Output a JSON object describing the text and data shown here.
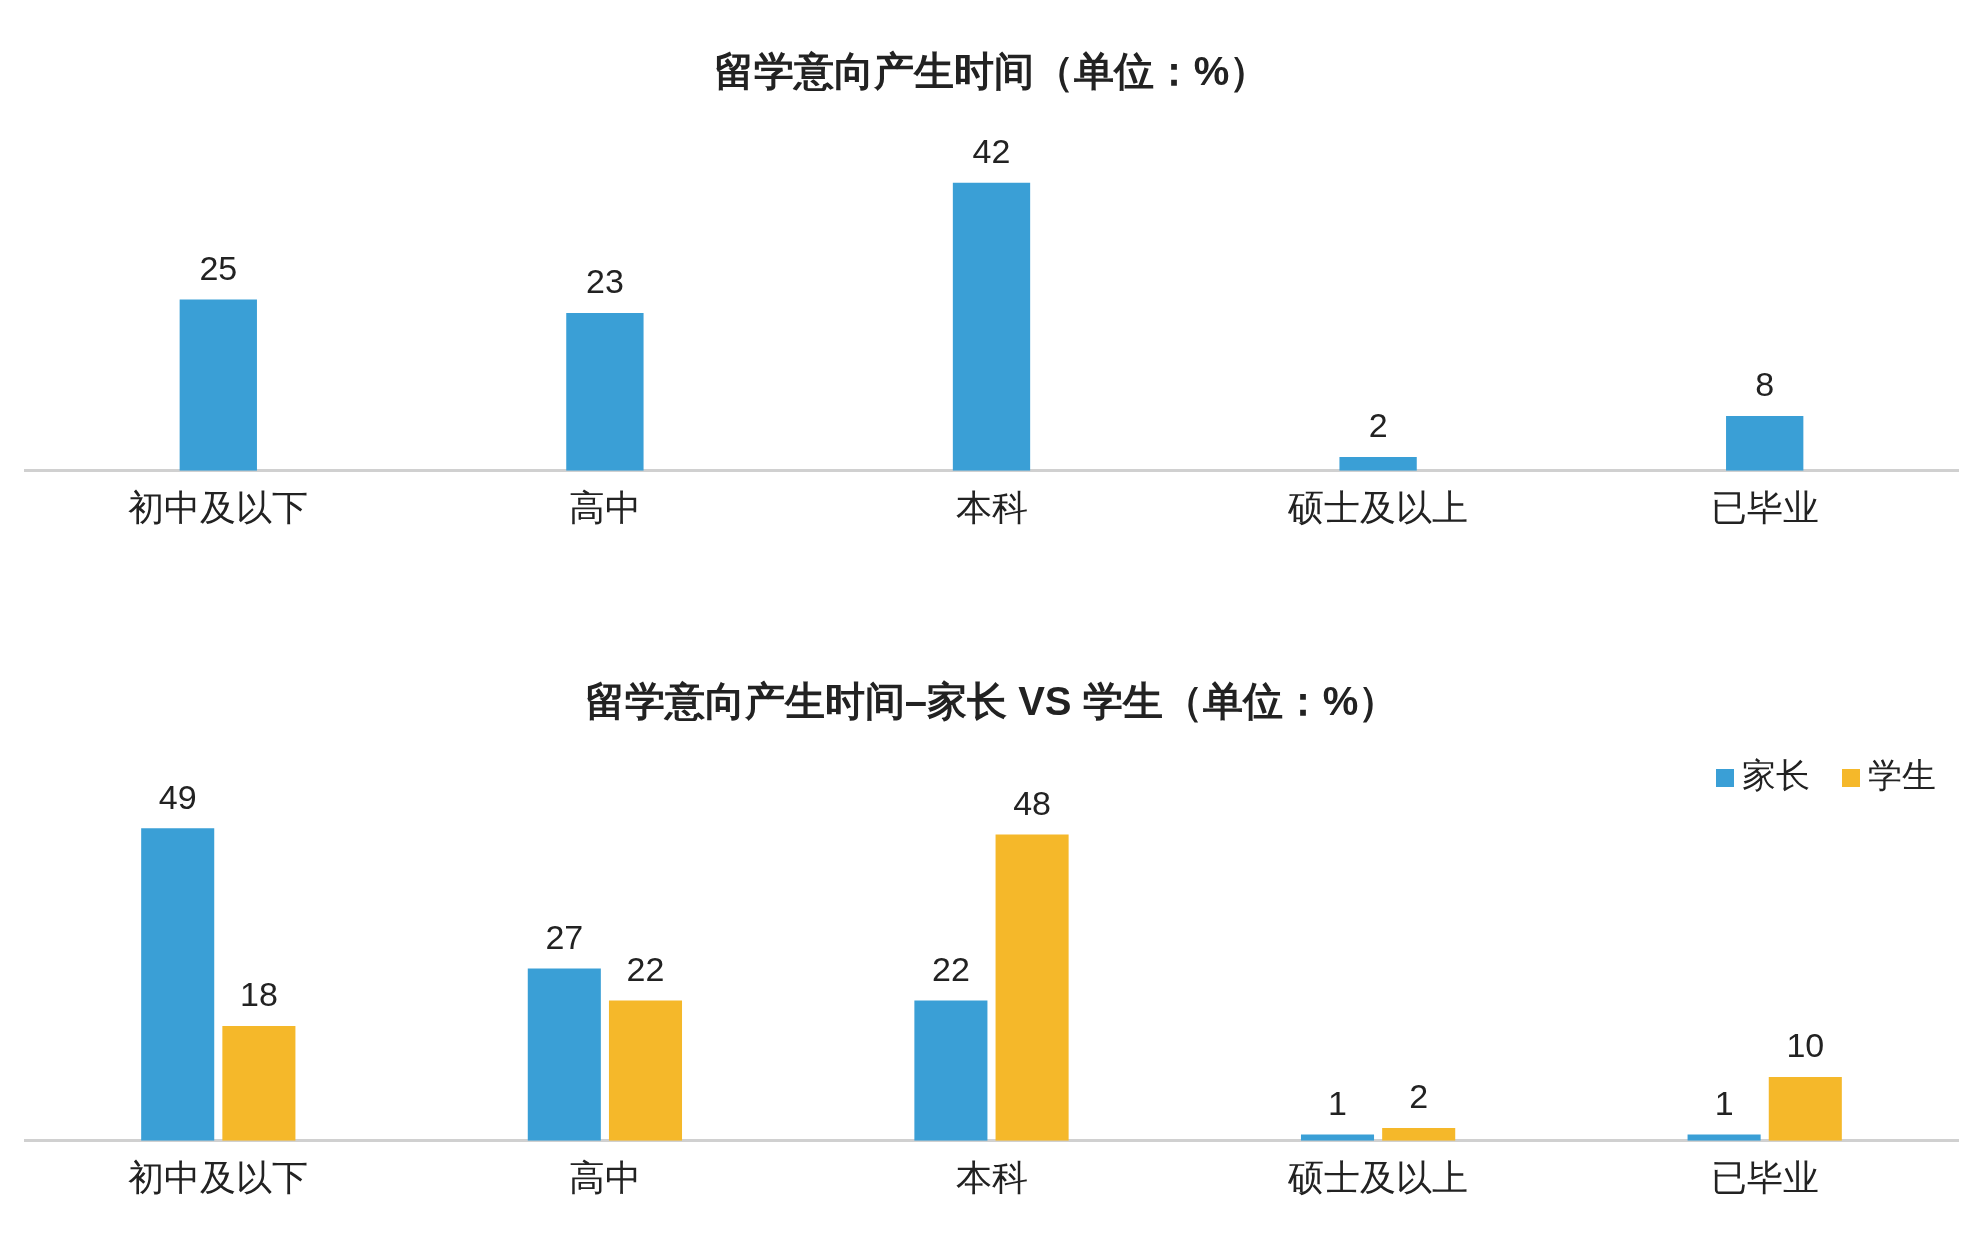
{
  "chart_data": [
    {
      "type": "bar",
      "title": "留学意向产生时间（单位：%）",
      "categories": [
        "初中及以下",
        "高中",
        "本科",
        "硕士及以上",
        "已毕业"
      ],
      "values": [
        25,
        23,
        42,
        2,
        8
      ],
      "color": "#3a9fd6",
      "data_labels": true,
      "grid": false,
      "tick_labels": "x",
      "legend": false
    },
    {
      "type": "bar",
      "title": "留学意向产生时间–家长 VS 学生（单位：%）",
      "categories": [
        "初中及以下",
        "高中",
        "本科",
        "硕士及以上",
        "已毕业"
      ],
      "series": [
        {
          "name": "家长",
          "color": "#3a9fd6",
          "values": [
            49,
            27,
            22,
            1,
            1
          ]
        },
        {
          "name": "学生",
          "color": "#f5b82a",
          "values": [
            18,
            22,
            48,
            2,
            10
          ]
        }
      ],
      "data_labels": true,
      "grid": false,
      "tick_labels": "x",
      "legend": "top right"
    }
  ]
}
